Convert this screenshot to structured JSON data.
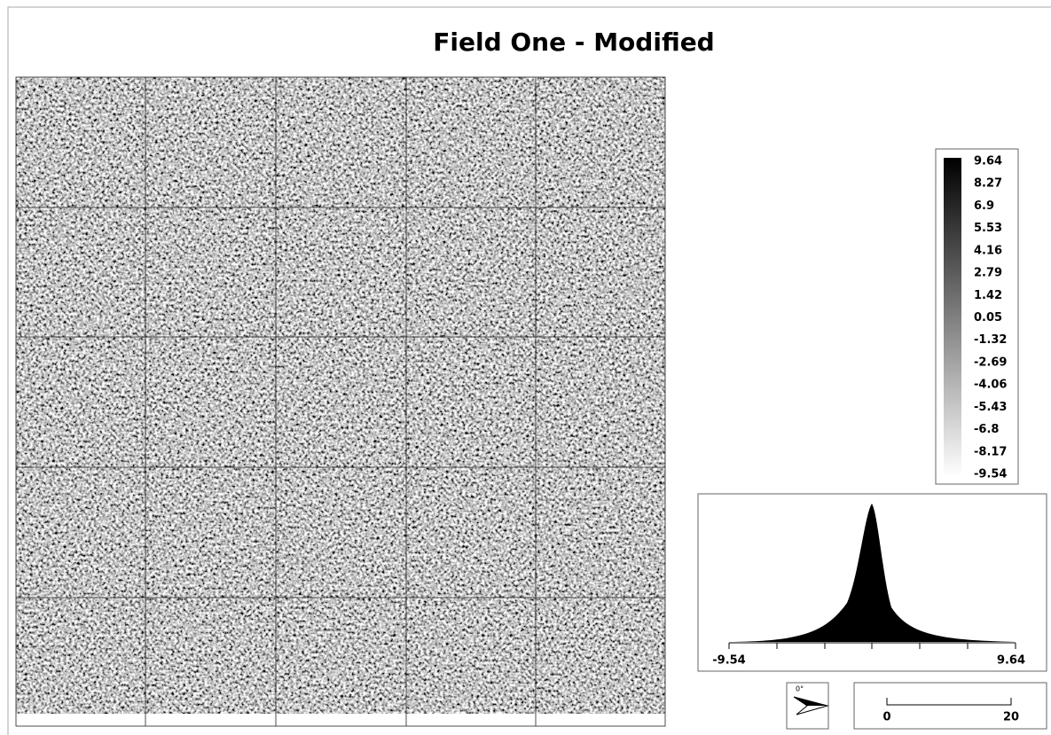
{
  "title": "Field One - Modified",
  "legend": {
    "labels": [
      9.64,
      8.27,
      6.9,
      5.53,
      4.16,
      2.79,
      1.42,
      0.05,
      -1.32,
      -2.69,
      -4.06,
      -5.43,
      -6.8,
      -8.17,
      -9.54
    ]
  },
  "histogram": {
    "min_label": -9.54,
    "max_label": 9.64
  },
  "north_arrow": {
    "label": "0°"
  },
  "scale_bar": {
    "labels": [
      "0",
      "20"
    ]
  }
}
